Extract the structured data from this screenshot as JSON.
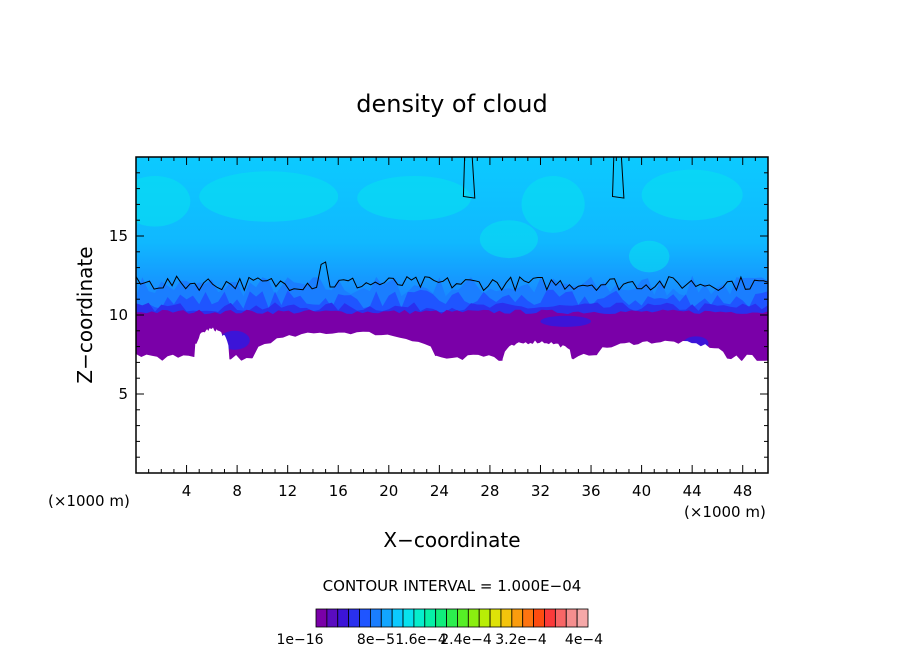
{
  "chart_data": {
    "type": "heatmap",
    "title": "density of cloud",
    "xlabel": "X−coordinate",
    "ylabel": "Z−coordinate",
    "x_unit_left": "(×1000 m)",
    "x_unit_right": "(×1000 m)",
    "xlim": [
      0,
      50
    ],
    "ylim": [
      0,
      20
    ],
    "x_ticks": [
      4,
      8,
      12,
      16,
      20,
      24,
      28,
      32,
      36,
      40,
      44,
      48
    ],
    "y_ticks": [
      5,
      10,
      15
    ],
    "contour_interval_label": "CONTOUR INTERVAL = 1.000E−04",
    "colorbar_labels": [
      "1e−16",
      "8e−5",
      "1.6e−4",
      "2.4e−4",
      "3.2e−4",
      "4e−4"
    ],
    "colorbar_colors": [
      "#7a00a8",
      "#5a0cc0",
      "#3c14d8",
      "#2a30ee",
      "#1f55ff",
      "#1a7eff",
      "#12a6ff",
      "#0ccaff",
      "#08e2ee",
      "#06eecc",
      "#06f0a6",
      "#10ee7c",
      "#2cee4e",
      "#56ee26",
      "#8aee10",
      "#b8ee06",
      "#dee208",
      "#f4c40c",
      "#fa9c0e",
      "#fe7410",
      "#fe4c10",
      "#fb3a3a",
      "#f86666",
      "#f58e8e",
      "#f5a8a8"
    ],
    "cloud_base_km": 7.2,
    "dense_layer_top_km": 10.2,
    "contour_level_km": 12.0,
    "cloud_top_km": 20.0,
    "gaps": [
      {
        "x_from": 4.6,
        "x_to": 7.4,
        "z_top": 9.1
      },
      {
        "x_from": 9.2,
        "x_to": 23.8,
        "z_top": 8.9
      },
      {
        "x_from": 29.0,
        "x_to": 34.5,
        "z_top": 8.3
      },
      {
        "x_from": 36.2,
        "x_to": 46.8,
        "z_top": 8.3
      }
    ],
    "updraft_core_x_km": [
      26.2,
      38.0
    ]
  }
}
